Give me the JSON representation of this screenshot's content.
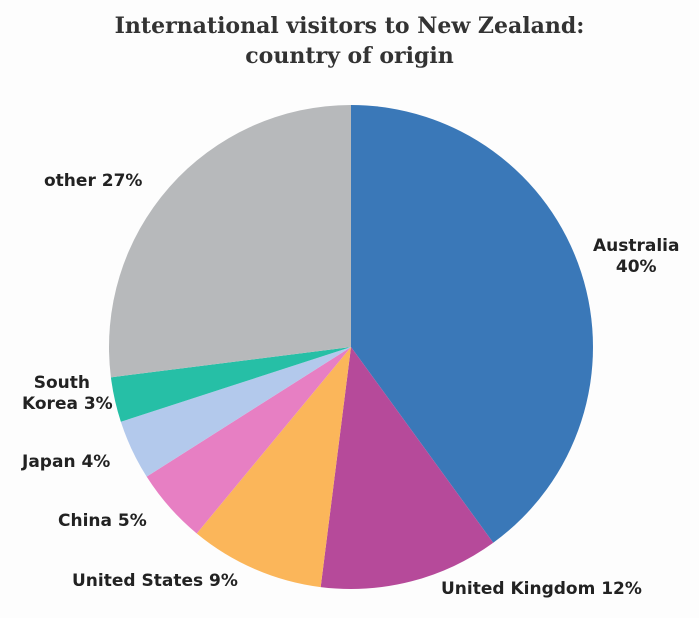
{
  "chart_data": {
    "type": "pie",
    "title": [
      "International visitors to New Zealand:",
      "country of origin"
    ],
    "slices": [
      {
        "name": "Australia",
        "value": 40,
        "color": "#3a78b8",
        "label_lines": [
          "Australia",
          "40%"
        ]
      },
      {
        "name": "United Kingdom",
        "value": 12,
        "color": "#b64a9a",
        "label_lines": [
          "United Kingdom 12%"
        ]
      },
      {
        "name": "United States",
        "value": 9,
        "color": "#fbb65a",
        "label_lines": [
          "United States 9%"
        ]
      },
      {
        "name": "China",
        "value": 5,
        "color": "#e77fc3",
        "label_lines": [
          "China 5%"
        ]
      },
      {
        "name": "Japan",
        "value": 4,
        "color": "#b3c9ec",
        "label_lines": [
          "Japan 4%"
        ]
      },
      {
        "name": "South Korea",
        "value": 3,
        "color": "#26bfa6",
        "label_lines": [
          "South",
          "Korea 3%"
        ]
      },
      {
        "name": "other",
        "value": 27,
        "color": "#b7b9bb",
        "label_lines": [
          "other 27%"
        ]
      }
    ],
    "start": "12 o'clock",
    "direction": "clockwise",
    "legend": "none (direct labels)"
  }
}
